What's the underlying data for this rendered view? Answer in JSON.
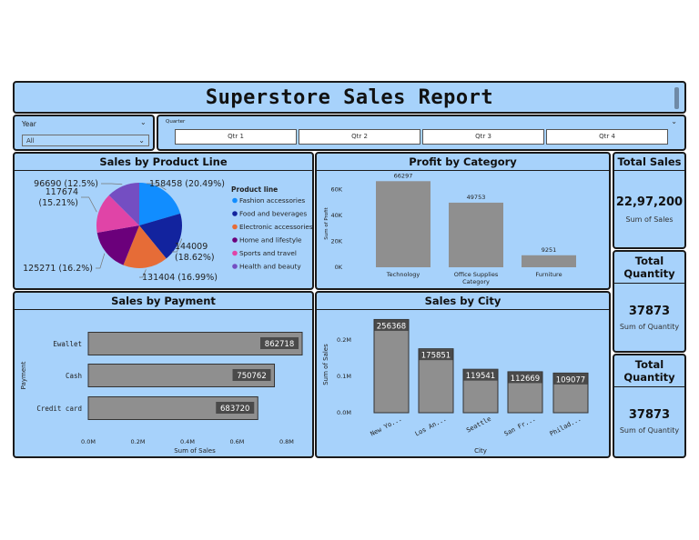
{
  "header": {
    "title": "Superstore Sales Report"
  },
  "year_slicer": {
    "label": "Year",
    "value": "All"
  },
  "quarter_slicer": {
    "label": "Quarter",
    "options": [
      "Qtr 1",
      "Qtr 2",
      "Qtr 3",
      "Qtr 4"
    ]
  },
  "chart_data": [
    {
      "type": "pie",
      "title": "Sales by Product Line",
      "legend_title": "Product line",
      "legend_position": "right",
      "slices": [
        {
          "name": "Fashion accessories",
          "value": 158458,
          "label": "158458 (20.49%)",
          "color": "#118dff"
        },
        {
          "name": "Food and beverages",
          "value": 144009,
          "label": "144009 (18.62%)",
          "color": "#12239e"
        },
        {
          "name": "Electronic accessories",
          "value": 131404,
          "label": "131404 (16.99%)",
          "color": "#e66c37"
        },
        {
          "name": "Home and lifestyle",
          "value": 125271,
          "label": "125271 (16.2%)",
          "color": "#6b007b"
        },
        {
          "name": "Sports and travel",
          "value": 117674,
          "label": "117674 (15.21%)",
          "color": "#e044a7"
        },
        {
          "name": "Health and beauty",
          "value": 96690,
          "label": "96690 (12.5%)",
          "color": "#744ec2"
        }
      ]
    },
    {
      "type": "bar",
      "title": "Profit by Category",
      "xlabel": "Category",
      "ylabel": "Sum of Profit",
      "categories": [
        "Technology",
        "Office Supplies",
        "Furniture"
      ],
      "values": [
        66297,
        49753,
        9251
      ],
      "yticks": [
        "0K",
        "20K",
        "40K",
        "60K"
      ],
      "ytick_values": [
        0,
        20000,
        40000,
        60000
      ],
      "ylim": [
        0,
        70000
      ],
      "color": "#8f8f8f"
    },
    {
      "type": "bar",
      "orientation": "horizontal",
      "title": "Sales by Payment",
      "xlabel": "Sum of Sales",
      "ylabel": "Payment",
      "categories": [
        "Ewallet",
        "Cash",
        "Credit card"
      ],
      "values": [
        862718,
        750762,
        683720
      ],
      "xticks": [
        "0.0M",
        "0.2M",
        "0.4M",
        "0.6M",
        "0.8M"
      ],
      "xtick_values": [
        0,
        200000,
        400000,
        600000,
        800000
      ],
      "xlim": [
        0,
        870000
      ],
      "color": "#8f8f8f"
    },
    {
      "type": "bar",
      "title": "Sales by City",
      "xlabel": "City",
      "ylabel": "Sum of Sales",
      "categories": [
        "New Yo...",
        "Los An...",
        "Seattle",
        "San Fr...",
        "Philad..."
      ],
      "values": [
        256368,
        175851,
        119541,
        112669,
        109077
      ],
      "yticks": [
        "0.0M",
        "0.1M",
        "0.2M"
      ],
      "ytick_values": [
        0,
        100000,
        200000
      ],
      "ylim": [
        0,
        260000
      ],
      "color": "#8f8f8f"
    }
  ],
  "kpis": [
    {
      "title": "Total Sales",
      "value": "22,97,200",
      "subtitle": "Sum of Sales"
    },
    {
      "title": "Total Quantity",
      "value": "37873",
      "subtitle": "Sum of Quantity"
    },
    {
      "title": "Total Quantity",
      "value": "37873",
      "subtitle": "Sum of Quantity"
    }
  ]
}
